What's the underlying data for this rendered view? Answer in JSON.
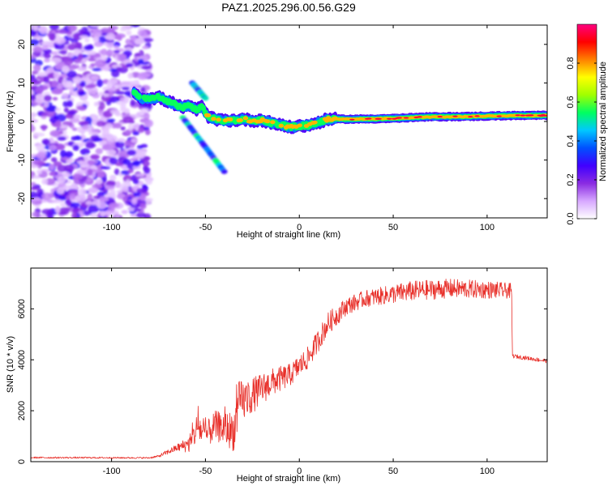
{
  "title": "PAZ1.2025.296.00.56.G29",
  "chart_data": [
    {
      "type": "heatmap",
      "title": "PAZ1.2025.296.00.56.G29",
      "xlabel": "Height of straight line (km)",
      "ylabel": "Frequency (Hz)",
      "xlim": [
        -143,
        132
      ],
      "ylim": [
        -25,
        25
      ],
      "xticks": [
        -100,
        -50,
        0,
        50,
        100
      ],
      "xtick_labels": [
        "-100",
        "-50",
        "0",
        "50",
        "100"
      ],
      "yticks": [
        -20,
        -10,
        0,
        10,
        20
      ],
      "ytick_labels": [
        "-20",
        "-10",
        "0",
        "10",
        "20"
      ],
      "colorbar": {
        "label": "Normalized spectral amplitude",
        "range": [
          0,
          1
        ],
        "ticks": [
          0,
          0.2,
          0.4,
          0.6,
          0.8
        ],
        "tick_labels": [
          "0.0",
          "0.2",
          "0.4",
          "0.6",
          "0.8"
        ],
        "colors": [
          "#ffffff",
          "#d7a8ff",
          "#8a2be2",
          "#4000ff",
          "#0050ff",
          "#00c8ff",
          "#00ff60",
          "#a0ff00",
          "#ffff00",
          "#ff8000",
          "#ff0000",
          "#ff0080"
        ]
      },
      "noise_region": {
        "x_range": [
          -143,
          -80
        ],
        "f_range": [
          -25,
          25
        ],
        "amplitude_range": [
          0.05,
          0.3
        ]
      },
      "ridge": [
        {
          "x": -88,
          "f": 7.5
        },
        {
          "x": -84,
          "f": 6.0
        },
        {
          "x": -80,
          "f": 5.8
        },
        {
          "x": -75,
          "f": 6.3
        },
        {
          "x": -70,
          "f": 5.2
        },
        {
          "x": -66,
          "f": 4.5
        },
        {
          "x": -62,
          "f": 3.5
        },
        {
          "x": -58,
          "f": 4.2
        },
        {
          "x": -55,
          "f": 3.0
        },
        {
          "x": -52,
          "f": 3.8
        },
        {
          "x": -49,
          "f": 1.5
        },
        {
          "x": -45,
          "f": 0.5
        },
        {
          "x": -40,
          "f": 0.3
        },
        {
          "x": -35,
          "f": 0.3
        },
        {
          "x": -30,
          "f": 0.6
        },
        {
          "x": -25,
          "f": 0.2
        },
        {
          "x": -20,
          "f": 0.4
        },
        {
          "x": -15,
          "f": -0.4
        },
        {
          "x": -10,
          "f": -0.8
        },
        {
          "x": -5,
          "f": -1.5
        },
        {
          "x": 0,
          "f": -1.2
        },
        {
          "x": 5,
          "f": -1.0
        },
        {
          "x": 10,
          "f": -0.3
        },
        {
          "x": 15,
          "f": 0.6
        },
        {
          "x": 30,
          "f": 0.6
        },
        {
          "x": 50,
          "f": 0.8
        },
        {
          "x": 70,
          "f": 1.2
        },
        {
          "x": 90,
          "f": 1.3
        },
        {
          "x": 110,
          "f": 1.5
        },
        {
          "x": 132,
          "f": 1.6
        }
      ],
      "side_features": [
        {
          "x_start": -57,
          "x_end": -50,
          "f_start": 10,
          "f_end": 6
        },
        {
          "x_start": -62,
          "x_end": -40,
          "f_start": 1,
          "f_end": -13
        }
      ]
    },
    {
      "type": "line",
      "xlabel": "Height of straight line (km)",
      "ylabel": "SNR (10 * v/v)",
      "xlim": [
        -143,
        132
      ],
      "ylim": [
        0,
        7600
      ],
      "xticks": [
        -100,
        -50,
        0,
        50,
        100
      ],
      "xtick_labels": [
        "-100",
        "-50",
        "0",
        "50",
        "100"
      ],
      "yticks": [
        0,
        2000,
        4000,
        6000
      ],
      "ytick_labels": [
        "0",
        "2000",
        "4000",
        "6000"
      ],
      "color": "#e8302a",
      "profile": [
        {
          "x": -143,
          "y": 160,
          "noise": 30
        },
        {
          "x": -80,
          "y": 150,
          "noise": 30
        },
        {
          "x": -75,
          "y": 210,
          "noise": 50
        },
        {
          "x": -65,
          "y": 550,
          "noise": 150
        },
        {
          "x": -58,
          "y": 700,
          "noise": 350
        },
        {
          "x": -54,
          "y": 1400,
          "noise": 650
        },
        {
          "x": -50,
          "y": 1000,
          "noise": 500
        },
        {
          "x": -45,
          "y": 1400,
          "noise": 600
        },
        {
          "x": -40,
          "y": 1300,
          "noise": 650
        },
        {
          "x": -35,
          "y": 1200,
          "noise": 800
        },
        {
          "x": -32,
          "y": 2300,
          "noise": 900
        },
        {
          "x": -25,
          "y": 2600,
          "noise": 700
        },
        {
          "x": -15,
          "y": 3100,
          "noise": 550
        },
        {
          "x": -5,
          "y": 3400,
          "noise": 450
        },
        {
          "x": 5,
          "y": 4100,
          "noise": 450
        },
        {
          "x": 15,
          "y": 5400,
          "noise": 450
        },
        {
          "x": 25,
          "y": 6100,
          "noise": 350
        },
        {
          "x": 35,
          "y": 6400,
          "noise": 330
        },
        {
          "x": 60,
          "y": 6700,
          "noise": 400
        },
        {
          "x": 80,
          "y": 6800,
          "noise": 380
        },
        {
          "x": 100,
          "y": 6750,
          "noise": 350
        },
        {
          "x": 113,
          "y": 6700,
          "noise": 300
        },
        {
          "x": 113.5,
          "y": 4150,
          "noise": 80
        },
        {
          "x": 132,
          "y": 3950,
          "noise": 80
        }
      ]
    }
  ]
}
